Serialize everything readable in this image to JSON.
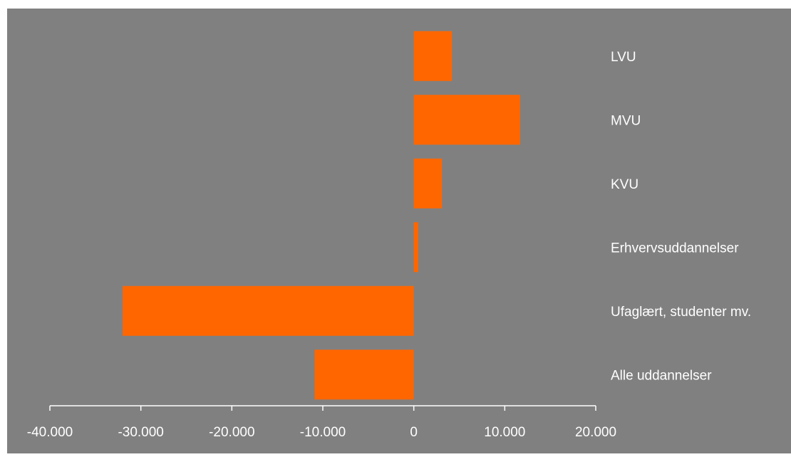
{
  "chart_data": {
    "type": "bar",
    "orientation": "horizontal",
    "categories": [
      "LVU",
      "MVU",
      "KVU",
      "Erhvervsuddannelser",
      "Ufaglært, studenter mv.",
      "Alle uddannelser"
    ],
    "values": [
      4200,
      11700,
      3100,
      500,
      -32000,
      -10900
    ],
    "xlim": [
      -40000,
      20000
    ],
    "xticks": [
      -40000,
      -30000,
      -20000,
      -10000,
      0,
      10000,
      20000
    ],
    "xtick_labels": [
      "-40.000",
      "-30.000",
      "-20.000",
      "-10.000",
      "0",
      "10.000",
      "20.000"
    ],
    "title": "",
    "xlabel": "",
    "ylabel": "",
    "grid": false,
    "legend": "none",
    "colors": {
      "bar": "#FF6600",
      "plot_background": "#808080",
      "page_background": "#FFFFFF",
      "axis": "#FFFFFF",
      "text": "#FFFFFF"
    }
  }
}
